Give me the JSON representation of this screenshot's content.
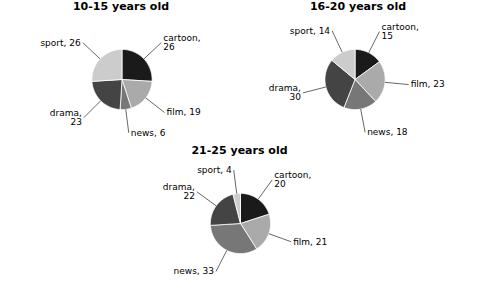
{
  "chart_data": [
    {
      "type": "pie",
      "title": "10-15 years old",
      "values": [
        26,
        19,
        6,
        23,
        26
      ],
      "value_labels": [
        "cartoon,\n26",
        "film, 19",
        "news, 6",
        "drama,\n23",
        "sport, 26"
      ],
      "colors": [
        "#1a1a1a",
        "#aaaaaa",
        "#777777",
        "#444444",
        "#cccccc"
      ],
      "data_labels": true
    },
    {
      "type": "pie",
      "title": "16-20 years old",
      "values": [
        15,
        23,
        18,
        30,
        14
      ],
      "value_labels": [
        "cartoon,\n15",
        "film, 23",
        "news, 18",
        "drama,\n30",
        "sport, 14"
      ],
      "colors": [
        "#1a1a1a",
        "#aaaaaa",
        "#777777",
        "#444444",
        "#cccccc"
      ],
      "data_labels": true
    },
    {
      "type": "pie",
      "title": "21-25 years old",
      "values": [
        20,
        21,
        33,
        22,
        4
      ],
      "value_labels": [
        "cartoon,\n20",
        "film, 21",
        "news, 33",
        "drama,\n22",
        "sport, 4"
      ],
      "colors": [
        "#1a1a1a",
        "#aaaaaa",
        "#777777",
        "#444444",
        "#cccccc"
      ],
      "data_labels": true
    }
  ]
}
